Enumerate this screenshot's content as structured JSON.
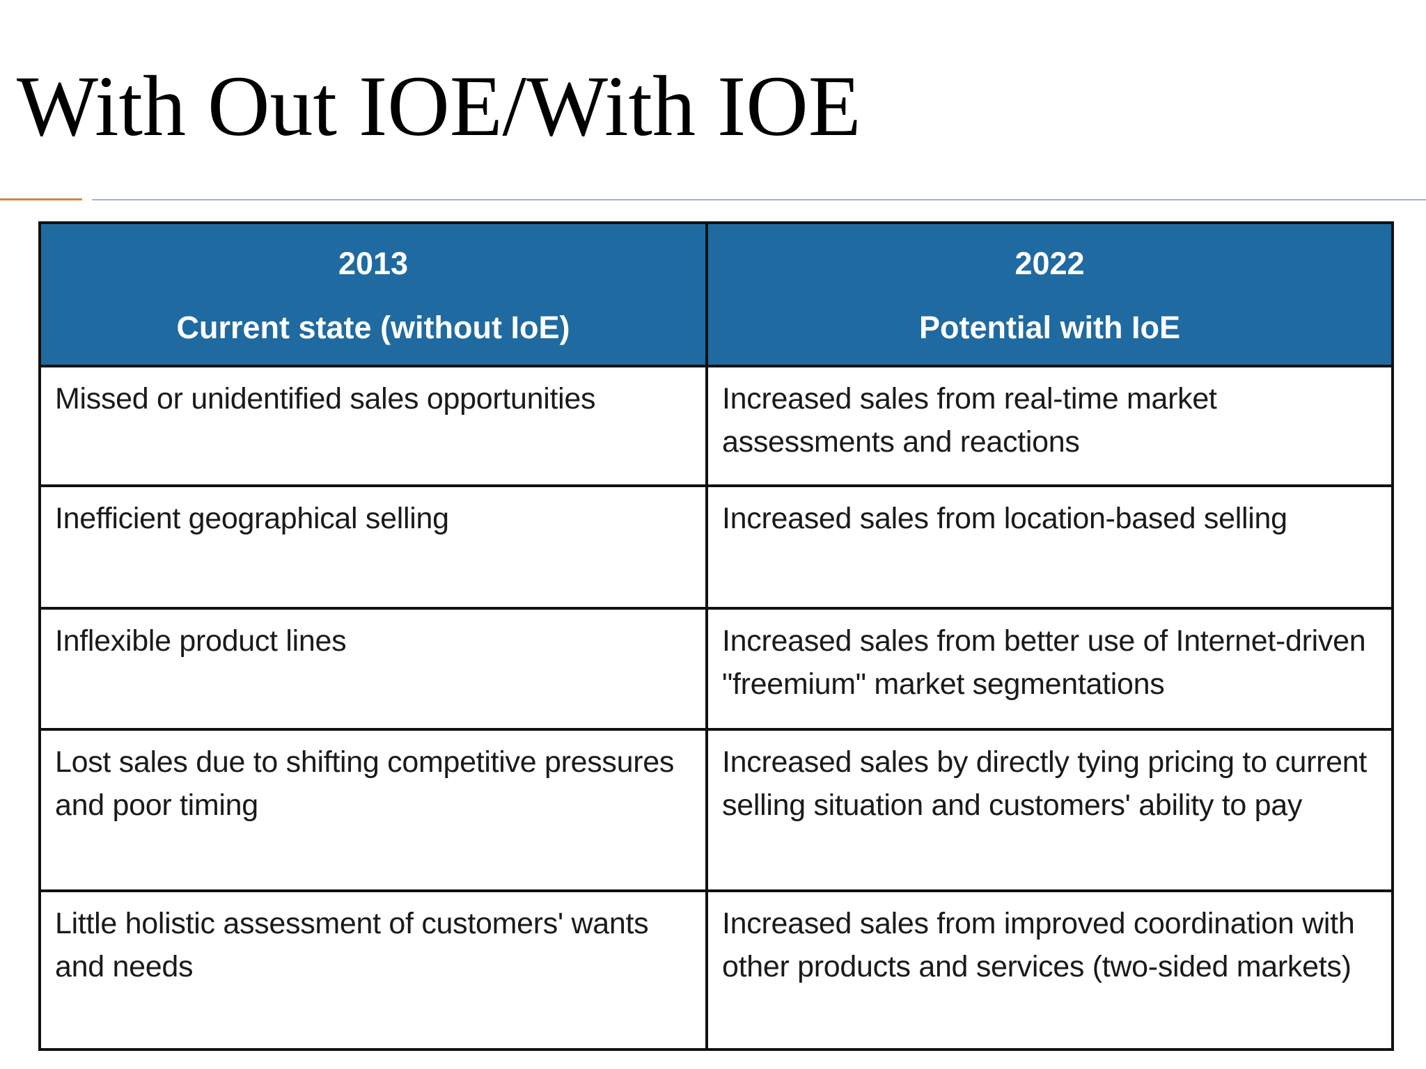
{
  "slide": {
    "title": "With Out IOE/With IOE",
    "accent_color": "#d9833e",
    "rule_color": "#9fb4c8"
  },
  "table": {
    "header_color": "#1f6aa0",
    "columns": [
      {
        "year": "2013",
        "label": "Current state (without IoE)"
      },
      {
        "year": "2022",
        "label": "Potential with IoE"
      }
    ],
    "rows": [
      {
        "current": "Missed or unidentified sales opportunities",
        "potential": "Increased sales from real-time market assessments and reactions"
      },
      {
        "current": "Inefficient geographical selling",
        "potential": "Increased sales from location-based selling"
      },
      {
        "current": "Inflexible product lines",
        "potential": "Increased sales from better use of Internet-driven \"freemium\" market segmentations"
      },
      {
        "current": "Lost sales due to shifting competitive pressures and poor timing",
        "potential": "Increased sales by directly tying pricing to current selling situation and customers' ability to pay"
      },
      {
        "current": "Little holistic assessment of customers' wants and needs",
        "potential": "Increased sales from improved coordination with other products and services (two-sided markets)"
      }
    ]
  }
}
